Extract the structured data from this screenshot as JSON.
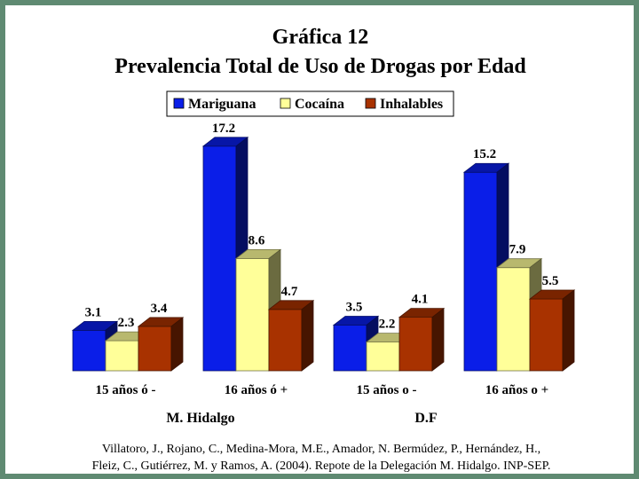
{
  "chart_data": {
    "type": "bar",
    "title": "Gráfica 12",
    "subtitle": "Prevalencia Total de Uso de Drogas por Edad",
    "categories": [
      "15 años ó -",
      "16 años ó +",
      "15 años o -",
      "16 años o +"
    ],
    "groups": [
      {
        "label": "M. Hidalgo",
        "categories": [
          0,
          1
        ]
      },
      {
        "label": "D.F",
        "categories": [
          2,
          3
        ]
      }
    ],
    "series": [
      {
        "name": "Mariguana",
        "color": "#0a1ee8",
        "values": [
          3.1,
          17.2,
          3.5,
          15.2
        ]
      },
      {
        "name": "Cocaína",
        "color": "#ffff99",
        "values": [
          2.3,
          8.6,
          2.2,
          7.9
        ]
      },
      {
        "name": "Inhalables",
        "color": "#a83200",
        "values": [
          3.4,
          4.7,
          4.1,
          5.5
        ]
      }
    ],
    "value_labels": [
      [
        "3.1",
        "17.2",
        "3.5",
        "15.2"
      ],
      [
        "2.3",
        "8.6",
        "2.2",
        "7.9"
      ],
      [
        "3.4",
        "4.7",
        "4.1",
        "5.5"
      ]
    ],
    "ylim": [
      0,
      18
    ],
    "grid": false,
    "legend_position": "top-center",
    "style": "3d-bar"
  },
  "source": {
    "line1": "Villatoro, J., Rojano, C., Medina-Mora, M.E., Amador, N. Bermúdez, P., Hernández, H.,",
    "line2": "Fleiz, C., Gutiérrez, M. y Ramos, A. (2004). Repote de la Delegación M. Hidalgo. INP-SEP."
  }
}
